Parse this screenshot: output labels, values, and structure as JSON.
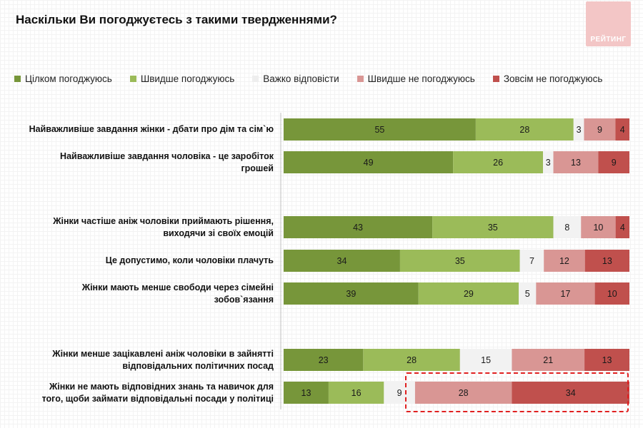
{
  "header": {
    "title": "Наскільки Ви погоджуєтесь з такими твердженнями?",
    "logo_text": "РЕЙТИНГ"
  },
  "chart_data": {
    "type": "bar",
    "orientation": "horizontal",
    "stacked": true,
    "title": "Наскільки Ви погоджуєтесь з такими твердженнями?",
    "xlim": [
      0,
      100
    ],
    "grid": false,
    "legend_position": "top",
    "categories": [
      "Найважливіше завдання жінки - дбати про дім та сім`ю",
      "Найважливіше завдання чоловіка - це заробіток грошей",
      "Жінки частіше аніж чоловіки приймають рішення, виходячи зі своїх емоцій",
      "Це допустимо, коли чоловіки плачуть",
      "Жінки мають менше свободи через сімейні зобов`язання",
      "Жінки менше зацікавлені аніж чоловіки в зайнятті відповідальних політичних посад",
      "Жінки не мають відповідних знань та навичок для того, щоби займати відповідальні посади у політиці"
    ],
    "category_lines": [
      [
        "Найважливіше завдання жінки - дбати про дім та сім`ю"
      ],
      [
        "Найважливіше завдання чоловіка - це заробіток",
        "грошей"
      ],
      [
        "Жінки частіше аніж чоловіки приймають рішення,",
        "виходячи зі своїх емоцій"
      ],
      [
        "Це допустимо, коли чоловіки плачуть"
      ],
      [
        "Жінки мають менше свободи через сімейні",
        "зобов`язання"
      ],
      [
        "Жінки менше зацікавлені аніж чоловіки в зайнятті",
        "відповідальних політичних посад"
      ],
      [
        "Жінки не мають відповідних знань та навичок для",
        "того, щоби займати відповідальні посади у політиці"
      ]
    ],
    "series": [
      {
        "name": "Цілком погоджуюсь",
        "color": "#77963a",
        "label_color": "#1a1a1a",
        "values": [
          55,
          49,
          43,
          34,
          39,
          23,
          13
        ]
      },
      {
        "name": "Швидше погоджуюсь",
        "color": "#9bbb59",
        "label_color": "#1a1a1a",
        "values": [
          28,
          26,
          35,
          35,
          29,
          28,
          16
        ]
      },
      {
        "name": "Важко відповісти",
        "color": "#f2f2f2",
        "label_color": "#1a1a1a",
        "values": [
          3,
          3,
          8,
          7,
          5,
          15,
          9
        ]
      },
      {
        "name": "Швидше не погоджуюсь",
        "color": "#d99694",
        "label_color": "#1a1a1a",
        "values": [
          9,
          13,
          10,
          12,
          17,
          21,
          28
        ]
      },
      {
        "name": "Зовсім не погоджуюсь",
        "color": "#c0504d",
        "label_color": "#1a1a1a",
        "values": [
          4,
          9,
          4,
          13,
          10,
          13,
          34
        ]
      }
    ],
    "highlight": {
      "category_index": 6,
      "series_indices": [
        3,
        4
      ]
    }
  }
}
